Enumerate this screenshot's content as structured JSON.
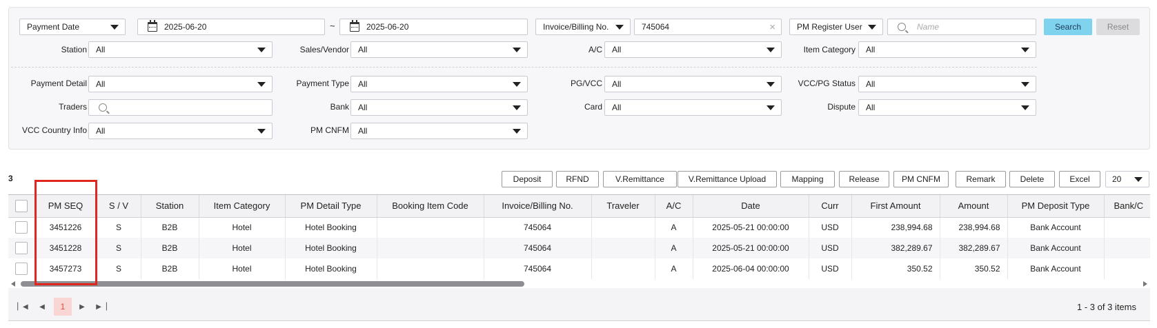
{
  "filters": {
    "date_type": "Payment Date",
    "date_from": "2025-06-20",
    "date_sep": "~",
    "date_to": "2025-06-20",
    "invoice_type": "Invoice/Billing No.",
    "invoice_value": "745064",
    "user_type": "PM Register User",
    "name_placeholder": "Name",
    "search_label": "Search",
    "reset_label": "Reset",
    "station_label": "Station",
    "station": "All",
    "sales_vendor_label": "Sales/Vendor",
    "sales_vendor": "All",
    "ac_label": "A/C",
    "ac": "All",
    "item_category_label": "Item Category",
    "item_category": "All",
    "payment_detail_label": "Payment Detail",
    "payment_detail": "All",
    "payment_type_label": "Payment Type",
    "payment_type": "All",
    "pg_vcc_label": "PG/VCC",
    "pg_vcc": "All",
    "vcc_pg_status_label": "VCC/PG Status",
    "vcc_pg_status": "All",
    "traders_label": "Traders",
    "bank_label": "Bank",
    "bank": "All",
    "card_label": "Card",
    "card": "All",
    "dispute_label": "Dispute",
    "dispute": "All",
    "vcc_country_label": "VCC Country Info",
    "vcc_country": "All",
    "pm_cnfm_label": "PM CNFM",
    "pm_cnfm": "All"
  },
  "toolbar": {
    "count": "3",
    "buttons": [
      "Deposit",
      "RFND",
      "V.Remittance",
      "V.Remittance Upload",
      "Mapping",
      "Release",
      "PM CNFM",
      "Remark",
      "Delete",
      "Excel"
    ],
    "page_size": "20"
  },
  "table": {
    "columns": [
      "",
      "PM SEQ",
      "S / V",
      "Station",
      "Item Category",
      "PM Detail Type",
      "Booking Item Code",
      "Invoice/Billing No.",
      "Traveler",
      "A/C",
      "Date",
      "Curr",
      "First Amount",
      "Amount",
      "PM Deposit Type",
      "Bank/C"
    ],
    "rows": [
      [
        "",
        "3451226",
        "S",
        "B2B",
        "Hotel",
        "Hotel Booking",
        "",
        "745064",
        "",
        "A",
        "2025-05-21 00:00:00",
        "USD",
        "238,994.68",
        "238,994.68",
        "Bank Account",
        ""
      ],
      [
        "",
        "3451228",
        "S",
        "B2B",
        "Hotel",
        "Hotel Booking",
        "",
        "745064",
        "",
        "A",
        "2025-05-21 00:00:00",
        "USD",
        "382,289.67",
        "382,289.67",
        "Bank Account",
        ""
      ],
      [
        "",
        "3457273",
        "S",
        "B2B",
        "Hotel",
        "Hotel Booking",
        "",
        "745064",
        "",
        "A",
        "2025-06-04 00:00:00",
        "USD",
        "350.52",
        "350.52",
        "Bank Account",
        ""
      ]
    ]
  },
  "pager": {
    "current_page": "1",
    "info": "1 - 3 of 3 items"
  },
  "colors": {
    "accent": "#7fd3ee",
    "highlight": "#e0261f",
    "current_page_bg": "#f9d5d3"
  }
}
